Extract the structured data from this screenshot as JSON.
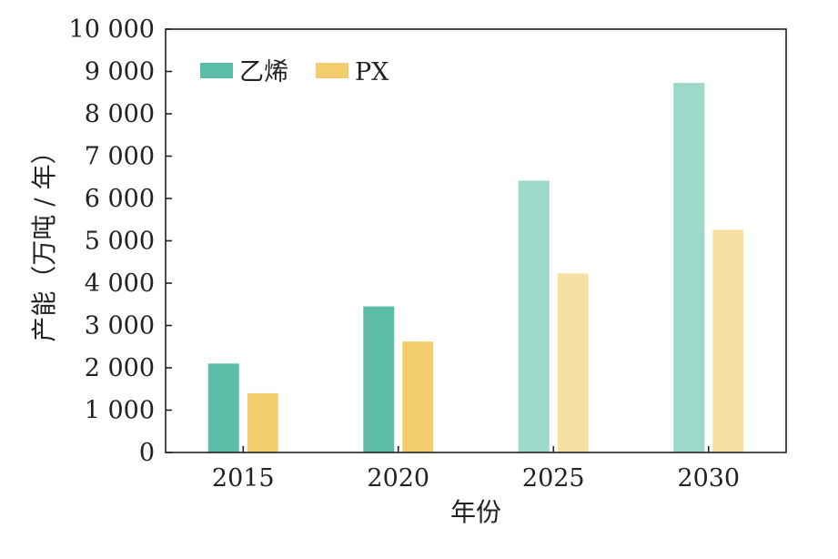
{
  "chart_data": {
    "type": "bar",
    "title": "",
    "xlabel": "年份",
    "ylabel": "产能（万吨 / 年）",
    "categories": [
      "2015",
      "2020",
      "2025",
      "2030"
    ],
    "series": [
      {
        "name": "乙烯",
        "values": [
          2100,
          3450,
          6420,
          8730
        ],
        "colors": [
          "#5bbda8",
          "#5bbda8",
          "#9dd8ca",
          "#9dd8ca"
        ]
      },
      {
        "name": "PX",
        "values": [
          1400,
          2620,
          4230,
          5260
        ],
        "colors": [
          "#f3cc6e",
          "#f3cc6e",
          "#f7e0a4",
          "#f7e0a4"
        ]
      }
    ],
    "ylim": [
      0,
      10000
    ],
    "yticks": [
      0,
      1000,
      2000,
      3000,
      4000,
      5000,
      6000,
      7000,
      8000,
      9000,
      10000
    ],
    "ytick_labels": [
      "0",
      "1 000",
      "2 000",
      "3 000",
      "4 000",
      "5 000",
      "6 000",
      "7 000",
      "8 000",
      "9 000",
      "10 000"
    ],
    "legend": {
      "placement": "top-left",
      "items": [
        {
          "label": "乙烯",
          "color": "#5bbda8"
        },
        {
          "label": "PX",
          "color": "#f3cc6e"
        }
      ]
    },
    "grid": false
  }
}
